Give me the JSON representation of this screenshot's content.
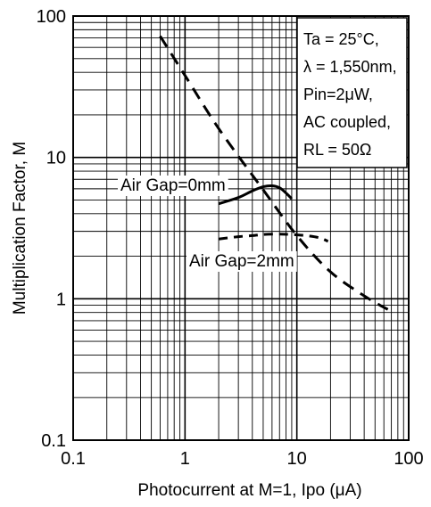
{
  "chart_data": {
    "type": "line",
    "title": "",
    "xlabel": "Photocurrent at M=1, Ipo (μA)",
    "ylabel": "Multiplication Factor, M",
    "x_scale": "log",
    "y_scale": "log",
    "xlim": [
      0.1,
      100
    ],
    "ylim": [
      0.1,
      100
    ],
    "x_ticks": [
      "0.1",
      "1",
      "10",
      "100"
    ],
    "y_ticks": [
      "0.1",
      "1",
      "10",
      "100"
    ],
    "grid": true,
    "series": [
      {
        "style": "dashed",
        "x": [
          0.6,
          1.0,
          2.0,
          5.0,
          10,
          20,
          40,
          65
        ],
        "y": [
          72,
          38,
          16,
          5.9,
          2.8,
          1.55,
          1.05,
          0.84
        ]
      },
      {
        "name": "Air Gap=0mm",
        "style": "solid",
        "x": [
          2.0,
          3.0,
          4.0,
          5.0,
          6.0,
          7.0,
          8.0,
          9.0
        ],
        "y": [
          4.7,
          5.2,
          5.8,
          6.2,
          6.3,
          6.1,
          5.6,
          5.1
        ]
      },
      {
        "name": "Air Gap=2mm",
        "style": "dashed",
        "x": [
          2.0,
          3.0,
          4.0,
          5.0,
          7.0,
          9.0,
          12,
          16,
          19
        ],
        "y": [
          2.65,
          2.75,
          2.8,
          2.85,
          2.87,
          2.85,
          2.8,
          2.7,
          2.55
        ]
      }
    ],
    "legend_box": {
      "position": "top-right",
      "lines": [
        "Ta = 25°C,",
        "λ = 1,550nm,",
        "Pin=2μW,",
        "AC coupled,",
        "RL = 50Ω"
      ]
    },
    "colors": {
      "line": "#000000",
      "grid": "#000000",
      "background": "#ffffff"
    }
  }
}
